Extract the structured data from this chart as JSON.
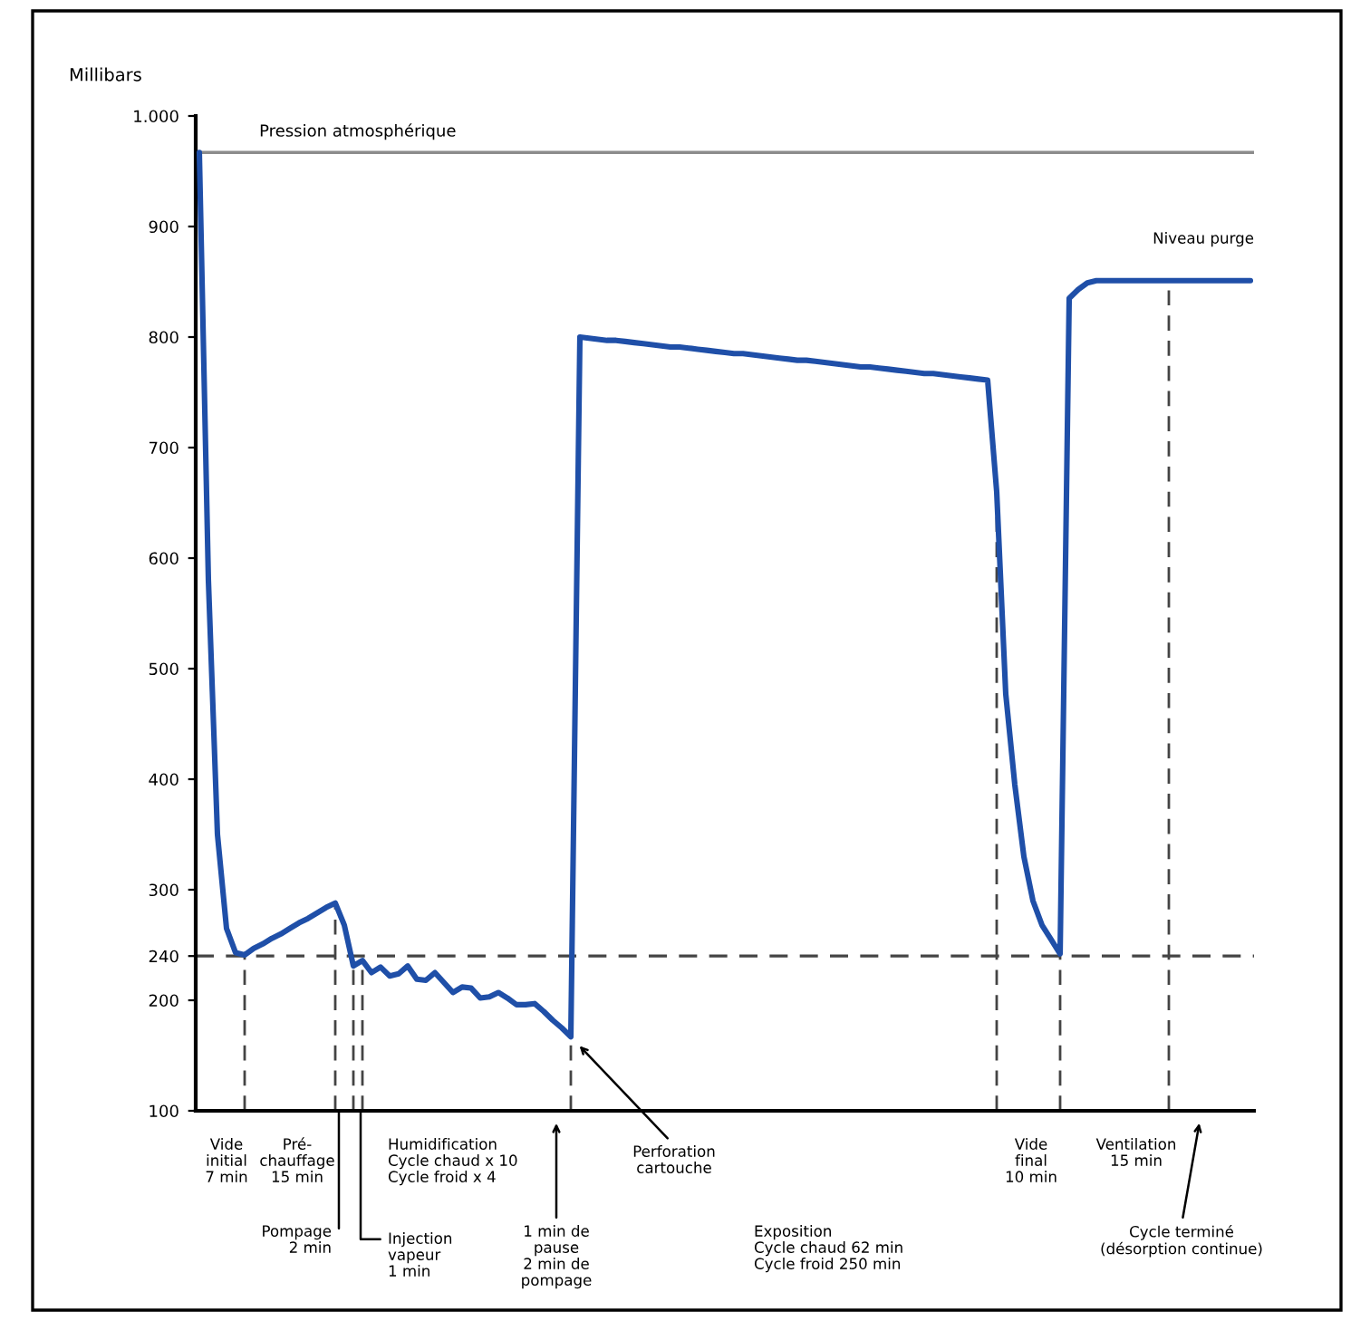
{
  "chart_data": {
    "type": "line",
    "ylabel": "Millibars",
    "categories": [
      null,
      null,
      null,
      null,
      null,
      null,
      null,
      null,
      null,
      null,
      null,
      null,
      null,
      null,
      null,
      null,
      null,
      null,
      null,
      null,
      null,
      null,
      null,
      null,
      null,
      null,
      null,
      null,
      null,
      null,
      null,
      null,
      null,
      null,
      null,
      null,
      null,
      null,
      null,
      null,
      null,
      null,
      null,
      null,
      null,
      null,
      null,
      null,
      null,
      null,
      null,
      null,
      null,
      null,
      null,
      null,
      null,
      null,
      null,
      null,
      null,
      null,
      null,
      null,
      null,
      null,
      null,
      null,
      null,
      null,
      null,
      null,
      null,
      null,
      null,
      null,
      null,
      null,
      null,
      null,
      null,
      null,
      null,
      null,
      null,
      null,
      null,
      null,
      null,
      null,
      null,
      null,
      null,
      null,
      null,
      null,
      null,
      null,
      null,
      null,
      null,
      null,
      null,
      null,
      null,
      null,
      null,
      null,
      null,
      null,
      null,
      null,
      null,
      null,
      null,
      null,
      null
    ],
    "series": [
      {
        "color": "#1f4fa8",
        "values": [
          967,
          580,
          350,
          265,
          243,
          241,
          247,
          251,
          256,
          260,
          265,
          270,
          274,
          279,
          284,
          288,
          268,
          231,
          236,
          225,
          230,
          222,
          224,
          231,
          219,
          218,
          225,
          216,
          207,
          212,
          211,
          202,
          203,
          207,
          202,
          196,
          196,
          197,
          190,
          182,
          175,
          167,
          800,
          799,
          798,
          797,
          797,
          796,
          795,
          794,
          793,
          792,
          791,
          791,
          790,
          789,
          788,
          787,
          786,
          785,
          785,
          784,
          783,
          782,
          781,
          780,
          779,
          779,
          778,
          777,
          776,
          775,
          774,
          773,
          773,
          772,
          771,
          770,
          769,
          768,
          767,
          767,
          766,
          765,
          764,
          763,
          762,
          761,
          660,
          477,
          395,
          330,
          290,
          268,
          255,
          242,
          835,
          843,
          849,
          851,
          851,
          851,
          851,
          851,
          851,
          851,
          851,
          851,
          851,
          851,
          851,
          851,
          851,
          851,
          851,
          851,
          851
        ]
      }
    ],
    "ylim": [
      100,
      1000
    ],
    "yticks": [
      100,
      200,
      240,
      300,
      400,
      500,
      600,
      700,
      800,
      900,
      {
        "value": 1000,
        "label": "1.000"
      }
    ],
    "tick_labels": "y",
    "grid": false,
    "marker": "none",
    "line_style": "solid",
    "ref_lines": [
      {
        "axis": "y",
        "value": 967,
        "label": "Pression atmosphérique",
        "color": "#8c8c8c",
        "line_style": "solid"
      },
      {
        "axis": "y",
        "value": 240,
        "color": "#444444",
        "line_style": "dashed"
      }
    ],
    "annotations": [
      "Niveau purge",
      "Vide\ninitial\n7 min",
      "Pré-\nchauffage\n15 min",
      "Pompage\n2 min",
      "Injection\nvapeur\n1 min",
      "Humidification\nCycle chaud x 10\nCycle froid x 4",
      "1 min de\npause\n2 min de\npompage",
      "Perforation\ncartouche",
      "Exposition\nCycle chaud 62 min\nCycle froid 250 min",
      "Vide\nfinal\n10 min",
      "Ventilation\n15 min",
      "Cycle terminé\n(désorption continue)"
    ]
  }
}
